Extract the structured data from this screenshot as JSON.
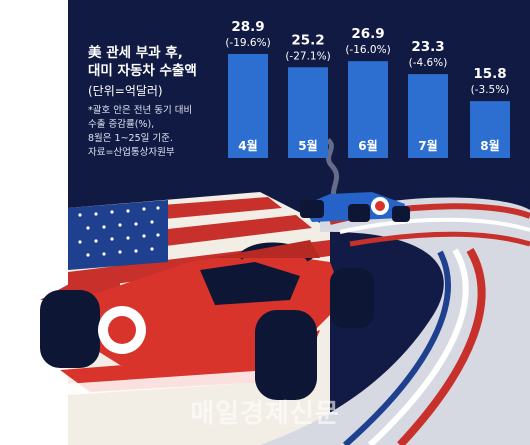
{
  "header": {
    "title_line1": "美 관세 부과 후,",
    "title_line2": "대미 자동차 수출액",
    "unit": "(단위=억달러)",
    "note_line1": "*괄호 안은 전년 동기 대비",
    "note_line2": "수출 증감률(%),",
    "note_line3": "8월은 1~25일 기준.",
    "note_line4": "자료=산업통상자원부"
  },
  "watermark": "매일경제신문",
  "colors": {
    "background": "#121b45",
    "bar": "#2d6fd1",
    "text": "#ffffff",
    "car_red": "#d9342b",
    "car_blue": "#2563c9",
    "flag_red": "#c8302c",
    "flag_blue": "#1f3f8f"
  },
  "chart_data": {
    "type": "bar",
    "categories": [
      "4월",
      "5월",
      "6월",
      "7월",
      "8월"
    ],
    "values": [
      28.9,
      25.2,
      26.9,
      23.3,
      15.8
    ],
    "value_labels": [
      "28.9",
      "25.2",
      "26.9",
      "23.3",
      "15.8"
    ],
    "change_labels": [
      "(-19.6%)",
      "(-27.1%)",
      "(-16.0%)",
      "(-4.6%)",
      "(-3.5%)"
    ],
    "title": "美 관세 부과 후, 대미 자동차 수출액",
    "ylabel": "(단위=억달러)",
    "ylim": [
      0,
      30
    ],
    "grid": false,
    "legend": "none"
  }
}
